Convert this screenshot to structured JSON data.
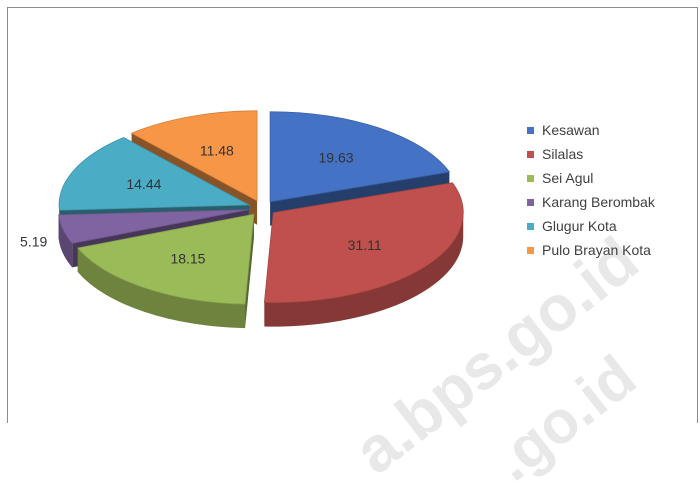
{
  "chart_data": {
    "type": "pie",
    "title": "",
    "categories": [
      "Kesawan",
      "Silalas",
      "Sei Agul",
      "Karang Berombak",
      "Glugur Kota",
      "Pulo Brayan Kota"
    ],
    "values": [
      19.63,
      31.11,
      18.15,
      5.19,
      14.44,
      11.48
    ],
    "value_labels": [
      "19.63",
      "31.11",
      "18.15",
      "5.19",
      "14.44",
      "11.48"
    ],
    "colors": [
      "#4472C4",
      "#C0504D",
      "#9BBB59",
      "#8064A2",
      "#4BACC6",
      "#F79646"
    ],
    "legend_placement": "right",
    "style": "3d-exploded"
  },
  "legend": {
    "items": [
      {
        "label": "Kesawan",
        "color": "#4472C4"
      },
      {
        "label": "Silalas",
        "color": "#C0504D"
      },
      {
        "label": "Sei Agul",
        "color": "#9BBB59"
      },
      {
        "label": "Karang Berombak",
        "color": "#8064A2"
      },
      {
        "label": "Glugur Kota",
        "color": "#4BACC6"
      },
      {
        "label": "Pulo Brayan Kota",
        "color": "#F79646"
      }
    ]
  }
}
